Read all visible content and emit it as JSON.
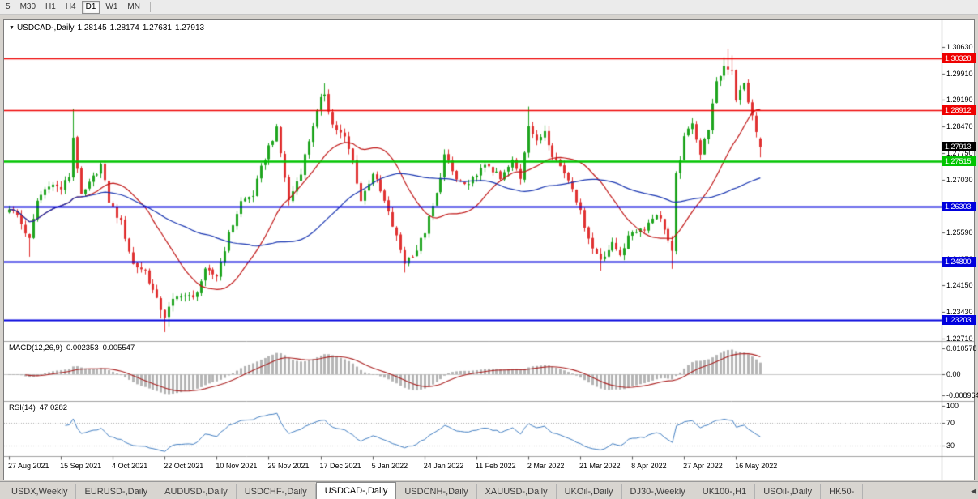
{
  "toolbar": {
    "timeframes": [
      {
        "label": "5",
        "active": false
      },
      {
        "label": "M30",
        "active": false
      },
      {
        "label": "H1",
        "active": false
      },
      {
        "label": "H4",
        "active": false
      },
      {
        "label": "D1",
        "active": true
      },
      {
        "label": "W1",
        "active": false
      },
      {
        "label": "MN",
        "active": false
      }
    ]
  },
  "chart": {
    "symbol_line": {
      "dropdown_icon": "▼",
      "symbol": "USDCAD-,Daily",
      "open": "1.28145",
      "high": "1.28174",
      "low": "1.27631",
      "close": "1.27913"
    },
    "macd_label": {
      "name": "MACD(12,26,9)",
      "value1": "0.002353",
      "value2": "0.005547"
    },
    "rsi_label": {
      "name": "RSI(14)",
      "value": "47.0282"
    }
  },
  "tabs": {
    "scroll_left_icon": "◀",
    "items": [
      {
        "label": "USDX,Weekly",
        "active": false
      },
      {
        "label": "EURUSD-,Daily",
        "active": false
      },
      {
        "label": "AUDUSD-,Daily",
        "active": false
      },
      {
        "label": "USDCHF-,Daily",
        "active": false
      },
      {
        "label": "USDCAD-,Daily",
        "active": true
      },
      {
        "label": "USDCNH-,Daily",
        "active": false
      },
      {
        "label": "XAUUSD-,Daily",
        "active": false
      },
      {
        "label": "UKOil-,Daily",
        "active": false
      },
      {
        "label": "DJ30-,Weekly",
        "active": false
      },
      {
        "label": "UK100-,H1",
        "active": false
      },
      {
        "label": "USOil-,Daily",
        "active": false
      },
      {
        "label": "HK50-",
        "active": false
      }
    ]
  },
  "chart_data": {
    "type": "candlestick",
    "symbol": "USDCAD-",
    "timeframe": "Daily",
    "current_bar": {
      "open": 1.28145,
      "high": 1.28174,
      "low": 1.27631,
      "close": 1.27913
    },
    "colors": {
      "up": "#1fa51f",
      "down": "#e03232",
      "ma_fast": "#c01616",
      "ma_slow": "#1633b0",
      "macd_hist": "#b5b5b5",
      "macd_signal": "#aa2020",
      "rsi_line": "#3f7cc0",
      "rsi_levels": "#a8a8a8",
      "separator": "#a0a0a0",
      "axis_line": "#909090"
    },
    "y_axis": {
      "step": 0.0072,
      "ticks": [
        "1.30630",
        "1.29910",
        "1.29190",
        "1.28470",
        "1.27750",
        "1.27030",
        "1.26310",
        "1.25590",
        "1.24870",
        "1.24150",
        "1.23430",
        "1.22710"
      ]
    },
    "x_axis": {
      "total_bars": 189,
      "bars_per_label": 13,
      "labels": [
        {
          "text": "27 Aug 2021",
          "bar": 0
        },
        {
          "text": "15 Sep 2021",
          "bar": 13
        },
        {
          "text": "4 Oct 2021",
          "bar": 26
        },
        {
          "text": "22 Oct 2021",
          "bar": 39
        },
        {
          "text": "10 Nov 2021",
          "bar": 52
        },
        {
          "text": "29 Nov 2021",
          "bar": 65
        },
        {
          "text": "17 Dec 2021",
          "bar": 78
        },
        {
          "text": "5 Jan 2022",
          "bar": 91
        },
        {
          "text": "24 Jan 2022",
          "bar": 104
        },
        {
          "text": "11 Feb 2022",
          "bar": 117
        },
        {
          "text": "2 Mar 2022",
          "bar": 130
        },
        {
          "text": "21 Mar 2022",
          "bar": 143
        },
        {
          "text": "8 Apr 2022",
          "bar": 156
        },
        {
          "text": "27 Apr 2022",
          "bar": 169
        },
        {
          "text": "16 May 2022",
          "bar": 182
        }
      ]
    },
    "horizontal_levels": [
      {
        "price": 1.30328,
        "color": "#ee0000",
        "width": 1.4,
        "role": "resistance"
      },
      {
        "price": 1.28912,
        "color": "#ee0000",
        "width": 1.4,
        "role": "resistance"
      },
      {
        "price": 1.27515,
        "color": "#00c400",
        "width": 2.4,
        "role": "support"
      },
      {
        "price": 1.26303,
        "color": "#0000dd",
        "width": 2,
        "role": "support"
      },
      {
        "price": 1.248,
        "color": "#0000dd",
        "width": 2,
        "role": "support"
      },
      {
        "price": 1.23203,
        "color": "#0000dd",
        "width": 2,
        "role": "support"
      }
    ],
    "price_tags": [
      {
        "label": "1.30328",
        "price": 1.30328,
        "bg": "#ee0000"
      },
      {
        "label": "1.28912",
        "price": 1.28912,
        "bg": "#ee0000"
      },
      {
        "label": "1.27913",
        "price": 1.27913,
        "bg": "#000000"
      },
      {
        "label": "1.27515",
        "price": 1.27515,
        "bg": "#00c400"
      },
      {
        "label": "1.26303",
        "price": 1.26303,
        "bg": "#0000dd"
      },
      {
        "label": "1.24800",
        "price": 1.248,
        "bg": "#0000dd"
      },
      {
        "label": "1.23203",
        "price": 1.23203,
        "bg": "#0000dd"
      }
    ],
    "moving_averages": [
      {
        "period": 20,
        "color": "#c01616"
      },
      {
        "period": 45,
        "color": "#1633b0"
      }
    ],
    "macd": {
      "params": [
        12,
        26,
        9
      ],
      "values": [
        0.002353,
        0.005547
      ],
      "axis": [
        "0.010578",
        "0.00",
        "-0.008964"
      ]
    },
    "rsi": {
      "period": 14,
      "value": 47.0282,
      "levels": [
        70,
        30
      ],
      "axis": [
        "100",
        "70",
        "30"
      ]
    },
    "close_anchors": [
      [
        0,
        1.2627
      ],
      [
        2,
        1.2605
      ],
      [
        5,
        1.2538
      ],
      [
        7,
        1.2645
      ],
      [
        10,
        1.2692
      ],
      [
        13,
        1.2678
      ],
      [
        15,
        1.2712
      ],
      [
        16,
        1.2818
      ],
      [
        18,
        1.2655
      ],
      [
        20,
        1.269
      ],
      [
        23,
        1.2742
      ],
      [
        25,
        1.2645
      ],
      [
        28,
        1.2585
      ],
      [
        31,
        1.2472
      ],
      [
        34,
        1.2455
      ],
      [
        37,
        1.2373
      ],
      [
        39,
        1.2332
      ],
      [
        41,
        1.2372
      ],
      [
        43,
        1.2392
      ],
      [
        46,
        1.2378
      ],
      [
        49,
        1.2452
      ],
      [
        52,
        1.2442
      ],
      [
        55,
        1.2552
      ],
      [
        58,
        1.2642
      ],
      [
        61,
        1.2662
      ],
      [
        63,
        1.2732
      ],
      [
        65,
        1.2792
      ],
      [
        67,
        1.2838
      ],
      [
        70,
        1.2645
      ],
      [
        73,
        1.2725
      ],
      [
        76,
        1.2852
      ],
      [
        78,
        1.2918
      ],
      [
        79,
        1.2938
      ],
      [
        81,
        1.2852
      ],
      [
        84,
        1.2815
      ],
      [
        86,
        1.2752
      ],
      [
        88,
        1.2645
      ],
      [
        91,
        1.2722
      ],
      [
        94,
        1.2642
      ],
      [
        97,
        1.2545
      ],
      [
        99,
        1.2478
      ],
      [
        102,
        1.2512
      ],
      [
        104,
        1.2562
      ],
      [
        107,
        1.2662
      ],
      [
        109,
        1.2768
      ],
      [
        112,
        1.2702
      ],
      [
        115,
        1.2682
      ],
      [
        117,
        1.2722
      ],
      [
        120,
        1.2742
      ],
      [
        123,
        1.2702
      ],
      [
        126,
        1.2752
      ],
      [
        128,
        1.2708
      ],
      [
        130,
        1.2855
      ],
      [
        132,
        1.2802
      ],
      [
        134,
        1.2838
      ],
      [
        136,
        1.2772
      ],
      [
        139,
        1.2722
      ],
      [
        141,
        1.2685
      ],
      [
        143,
        1.2612
      ],
      [
        146,
        1.2515
      ],
      [
        148,
        1.2488
      ],
      [
        151,
        1.2525
      ],
      [
        153,
        1.2502
      ],
      [
        156,
        1.2562
      ],
      [
        159,
        1.2572
      ],
      [
        162,
        1.2612
      ],
      [
        164,
        1.2572
      ],
      [
        166,
        1.2502
      ],
      [
        167,
        1.2712
      ],
      [
        169,
        1.2812
      ],
      [
        171,
        1.2862
      ],
      [
        173,
        1.2772
      ],
      [
        175,
        1.2845
      ],
      [
        177,
        1.2962
      ],
      [
        179,
        1.3012
      ],
      [
        181,
        1.3002
      ],
      [
        182,
        1.2922
      ],
      [
        184,
        1.2962
      ],
      [
        186,
        1.2872
      ],
      [
        188,
        1.27913
      ]
    ],
    "wick_overrides": {
      "5": {
        "l": 1.2493
      },
      "16": {
        "h": 1.2895
      },
      "38": {
        "l": 1.2325
      },
      "39": {
        "l": 1.2288
      },
      "40": {
        "l": 1.2302
      },
      "79": {
        "h": 1.2964
      },
      "99": {
        "l": 1.245
      },
      "130": {
        "h": 1.2901
      },
      "148": {
        "l": 1.2455
      },
      "166": {
        "l": 1.246
      },
      "179": {
        "h": 1.3035
      },
      "180": {
        "h": 1.3058
      },
      "181": {
        "h": 1.304
      }
    }
  }
}
